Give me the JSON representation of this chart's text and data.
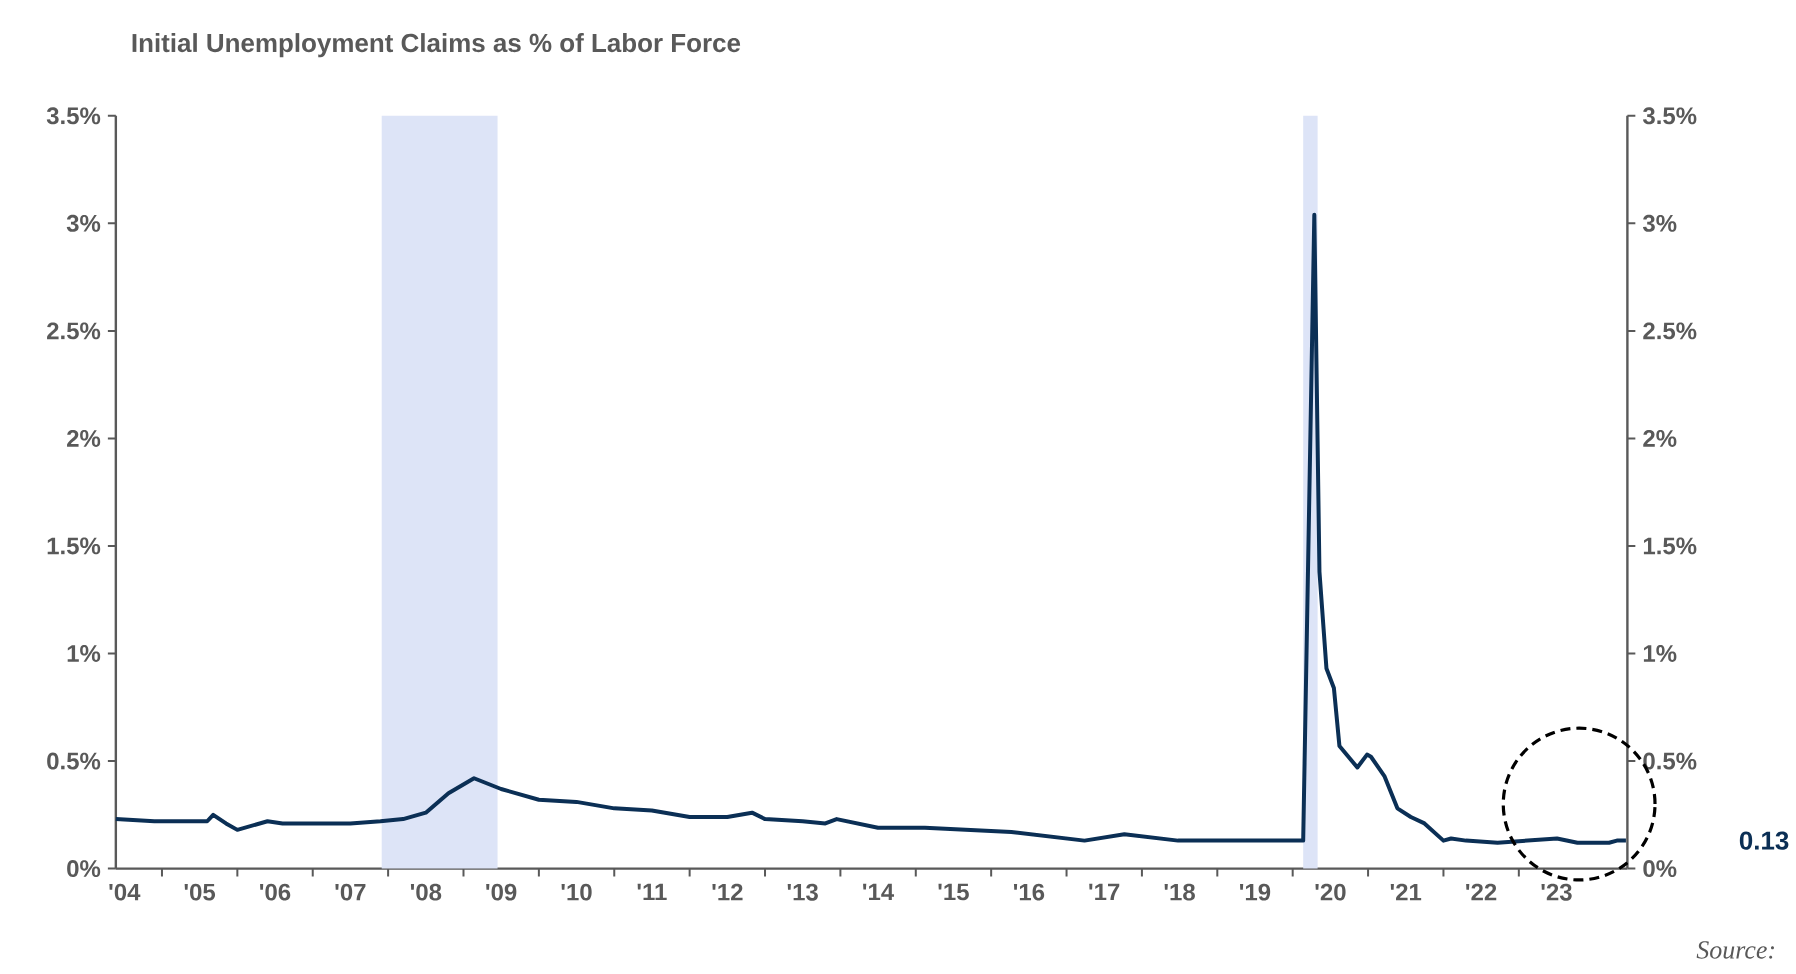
{
  "chart_data": {
    "type": "line",
    "title": "Initial Unemployment Claims as % of Labor Force",
    "x": [
      "2004-05-22",
      "2004-11-25",
      "2005-04-20",
      "2005-08-08",
      "2005-09-06",
      "2005-11-07",
      "2006-01-01",
      "2006-05-27",
      "2006-08-08",
      "2007-01-01",
      "2007-07-02",
      "2007-11-25",
      "2008-03-14",
      "2008-07-02",
      "2008-10-20",
      "2009-02-21",
      "2009-07-02",
      "2010-01-01",
      "2010-07-02",
      "2011-01-01",
      "2011-07-02",
      "2012-01-01",
      "2012-07-02",
      "2012-10-30",
      "2013-01-01",
      "2013-07-02",
      "2013-10-20",
      "2013-12-14",
      "2014-07-02",
      "2015-02-14",
      "2016-04-08",
      "2017-03-29",
      "2017-10-08",
      "2018-06-25",
      "2019-10-20",
      "2020-02-21",
      "2020-04-15",
      "2020-05-10",
      "2020-06-13",
      "2020-07-19",
      "2020-08-15",
      "2020-11-10",
      "2020-12-27",
      "2021-01-15",
      "2021-03-21",
      "2021-05-23",
      "2021-07-27",
      "2021-10-01",
      "2022-01-01",
      "2022-02-07",
      "2022-04-20",
      "2022-09-20",
      "2023-07-05",
      "2023-10-12",
      "2024-03-13",
      "2024-04-20",
      "2024-06-03"
    ],
    "series": [
      {
        "color": "#0b2f55",
        "values": [
          0.23,
          0.22,
          0.22,
          0.22,
          0.25,
          0.21,
          0.18,
          0.22,
          0.21,
          0.21,
          0.21,
          0.22,
          0.23,
          0.26,
          0.35,
          0.42,
          0.37,
          0.32,
          0.31,
          0.28,
          0.27,
          0.24,
          0.24,
          0.26,
          0.23,
          0.22,
          0.21,
          0.23,
          0.19,
          0.19,
          0.17,
          0.13,
          0.16,
          0.13,
          0.13,
          0.13,
          3.04,
          1.38,
          0.93,
          0.84,
          0.57,
          0.47,
          0.53,
          0.52,
          0.43,
          0.28,
          0.24,
          0.21,
          0.13,
          0.14,
          0.13,
          0.12,
          0.14,
          0.12,
          0.12,
          0.13,
          0.13
        ]
      }
    ],
    "xlim": [
      "2004-05-22",
      "2024-06-10"
    ],
    "xticks": [
      {
        "value": "2004-07-02",
        "label": "'04"
      },
      {
        "value": "2005-07-02",
        "label": "'05"
      },
      {
        "value": "2006-07-02",
        "label": "'06"
      },
      {
        "value": "2007-07-02",
        "label": "'07"
      },
      {
        "value": "2008-07-02",
        "label": "'08"
      },
      {
        "value": "2009-07-02",
        "label": "'09"
      },
      {
        "value": "2010-07-02",
        "label": "'10"
      },
      {
        "value": "2011-07-02",
        "label": "'11"
      },
      {
        "value": "2012-07-02",
        "label": "'12"
      },
      {
        "value": "2013-07-02",
        "label": "'13"
      },
      {
        "value": "2014-07-02",
        "label": "'14"
      },
      {
        "value": "2015-07-02",
        "label": "'15"
      },
      {
        "value": "2016-07-02",
        "label": "'16"
      },
      {
        "value": "2017-07-02",
        "label": "'17"
      },
      {
        "value": "2018-07-02",
        "label": "'18"
      },
      {
        "value": "2019-07-02",
        "label": "'19"
      },
      {
        "value": "2020-07-02",
        "label": "'20"
      },
      {
        "value": "2021-07-02",
        "label": "'21"
      },
      {
        "value": "2022-07-02",
        "label": "'22"
      },
      {
        "value": "2023-07-02",
        "label": "'23"
      },
      {
        "value": "2005-01-01",
        "label": null
      },
      {
        "value": "2006-01-01",
        "label": null
      },
      {
        "value": "2007-01-01",
        "label": null
      },
      {
        "value": "2008-01-01",
        "label": null
      },
      {
        "value": "2009-01-01",
        "label": null
      },
      {
        "value": "2010-01-01",
        "label": null
      },
      {
        "value": "2011-01-01",
        "label": null
      },
      {
        "value": "2012-01-01",
        "label": null
      },
      {
        "value": "2013-01-01",
        "label": null
      },
      {
        "value": "2014-01-01",
        "label": null
      },
      {
        "value": "2015-01-01",
        "label": null
      },
      {
        "value": "2016-01-01",
        "label": null
      },
      {
        "value": "2017-01-01",
        "label": null
      },
      {
        "value": "2018-01-01",
        "label": null
      },
      {
        "value": "2019-01-01",
        "label": null
      },
      {
        "value": "2020-01-01",
        "label": null
      },
      {
        "value": "2021-01-01",
        "label": null
      },
      {
        "value": "2022-01-01",
        "label": null
      },
      {
        "value": "2023-01-01",
        "label": null
      }
    ],
    "ylim": [
      0,
      3.5
    ],
    "yticks": [
      {
        "value": 0,
        "label": "0%"
      },
      {
        "value": 0.5,
        "label": "0.5%"
      },
      {
        "value": 1,
        "label": "1%"
      },
      {
        "value": 1.5,
        "label": "1.5%"
      },
      {
        "value": 2,
        "label": "2%"
      },
      {
        "value": 2.5,
        "label": "2.5%"
      },
      {
        "value": 3,
        "label": "3%"
      },
      {
        "value": 3.5,
        "label": "3.5%"
      }
    ],
    "y2lim": [
      0,
      3.5
    ],
    "y2ticks": [
      {
        "value": 0,
        "label": "0%"
      },
      {
        "value": 0.5,
        "label": "0.5%"
      },
      {
        "value": 1,
        "label": "1%"
      },
      {
        "value": 1.5,
        "label": "1.5%"
      },
      {
        "value": 2,
        "label": "2%"
      },
      {
        "value": 2.5,
        "label": "2.5%"
      },
      {
        "value": 3,
        "label": "3%"
      },
      {
        "value": 3.5,
        "label": "3.5%"
      }
    ],
    "bands": [
      {
        "axis": "x",
        "from": "2007-12-01",
        "to": "2009-06-15",
        "color": "#dde4f7"
      },
      {
        "axis": "x",
        "from": "2020-02-21",
        "to": "2020-05-01",
        "color": "#dde4f7"
      }
    ],
    "annotations": [
      "0.13",
      "Source:"
    ]
  }
}
